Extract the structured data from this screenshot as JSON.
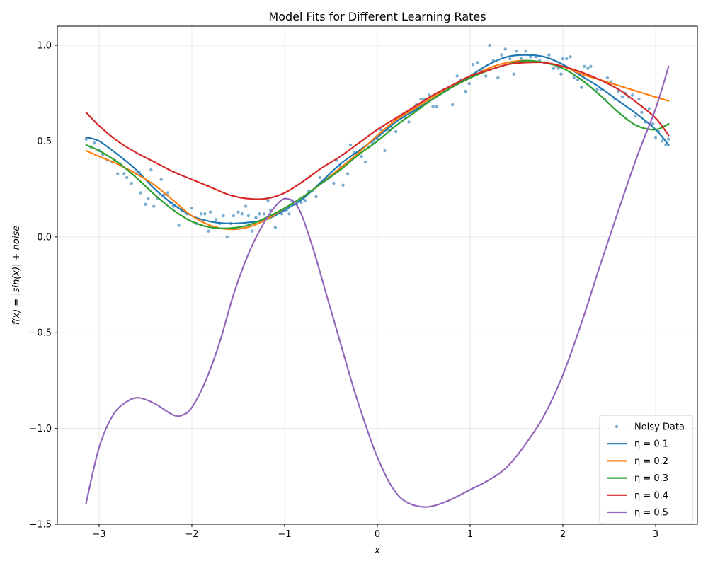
{
  "chart_data": {
    "type": "line",
    "title": "Model Fits for Different Learning Rates",
    "xlabel": "x",
    "ylabel": "f(x) = |sin(x)| + noise",
    "xlim": [
      -3.45,
      3.45
    ],
    "ylim": [
      -1.5,
      1.1
    ],
    "xticks": [
      -3,
      -2,
      -1,
      0,
      1,
      2,
      3
    ],
    "xtick_labels": [
      "−3",
      "−2",
      "−1",
      "0",
      "1",
      "2",
      "3"
    ],
    "yticks": [
      -1.5,
      -1.0,
      -0.5,
      0.0,
      0.5,
      1.0
    ],
    "ytick_labels": [
      "−1.5",
      "−1.0",
      "−0.5",
      "0.0",
      "0.5",
      "1.0"
    ],
    "grid": true,
    "legend_position": "lower-right",
    "scatter": {
      "name": "Noisy Data",
      "color": "#1f77b4",
      "points": [
        [
          -3.14,
          0.51
        ],
        [
          -3.09,
          0.47
        ],
        [
          -3.05,
          0.49
        ],
        [
          -3.0,
          0.45
        ],
        [
          -2.96,
          0.43
        ],
        [
          -2.91,
          0.4
        ],
        [
          -2.86,
          0.39
        ],
        [
          -2.83,
          0.4
        ],
        [
          -2.8,
          0.33
        ],
        [
          -2.77,
          0.38
        ],
        [
          -2.73,
          0.33
        ],
        [
          -2.7,
          0.31
        ],
        [
          -2.65,
          0.28
        ],
        [
          -2.6,
          0.33
        ],
        [
          -2.57,
          0.34
        ],
        [
          -2.55,
          0.23
        ],
        [
          -2.5,
          0.17
        ],
        [
          -2.47,
          0.2
        ],
        [
          -2.44,
          0.35
        ],
        [
          -2.41,
          0.16
        ],
        [
          -2.37,
          0.2
        ],
        [
          -2.33,
          0.3
        ],
        [
          -2.3,
          0.22
        ],
        [
          -2.26,
          0.23
        ],
        [
          -2.23,
          0.18
        ],
        [
          -2.2,
          0.16
        ],
        [
          -2.14,
          0.06
        ],
        [
          -2.11,
          0.14
        ],
        [
          -2.05,
          0.12
        ],
        [
          -2.0,
          0.15
        ],
        [
          -1.95,
          0.07
        ],
        [
          -1.9,
          0.12
        ],
        [
          -1.86,
          0.12
        ],
        [
          -1.82,
          0.03
        ],
        [
          -1.8,
          0.13
        ],
        [
          -1.74,
          0.09
        ],
        [
          -1.7,
          0.07
        ],
        [
          -1.66,
          0.11
        ],
        [
          -1.62,
          0.0
        ],
        [
          -1.58,
          0.07
        ],
        [
          -1.55,
          0.11
        ],
        [
          -1.5,
          0.13
        ],
        [
          -1.46,
          0.12
        ],
        [
          -1.42,
          0.16
        ],
        [
          -1.39,
          0.11
        ],
        [
          -1.35,
          0.03
        ],
        [
          -1.31,
          0.1
        ],
        [
          -1.27,
          0.12
        ],
        [
          -1.22,
          0.12
        ],
        [
          -1.18,
          0.19
        ],
        [
          -1.15,
          0.14
        ],
        [
          -1.1,
          0.05
        ],
        [
          -1.06,
          0.13
        ],
        [
          -1.03,
          0.12
        ],
        [
          -0.98,
          0.14
        ],
        [
          -0.95,
          0.12
        ],
        [
          -0.92,
          0.19
        ],
        [
          -0.87,
          0.17
        ],
        [
          -0.82,
          0.18
        ],
        [
          -0.78,
          0.19
        ],
        [
          -0.74,
          0.24
        ],
        [
          -0.7,
          0.24
        ],
        [
          -0.66,
          0.21
        ],
        [
          -0.62,
          0.31
        ],
        [
          -0.58,
          0.29
        ],
        [
          -0.55,
          0.3
        ],
        [
          -0.52,
          0.31
        ],
        [
          -0.47,
          0.28
        ],
        [
          -0.44,
          0.4
        ],
        [
          -0.4,
          0.37
        ],
        [
          -0.37,
          0.27
        ],
        [
          -0.32,
          0.33
        ],
        [
          -0.29,
          0.48
        ],
        [
          -0.25,
          0.44
        ],
        [
          -0.21,
          0.44
        ],
        [
          -0.17,
          0.42
        ],
        [
          -0.13,
          0.39
        ],
        [
          -0.09,
          0.47
        ],
        [
          -0.05,
          0.49
        ],
        [
          0.0,
          0.51
        ],
        [
          0.04,
          0.56
        ],
        [
          0.08,
          0.45
        ],
        [
          0.12,
          0.56
        ],
        [
          0.16,
          0.57
        ],
        [
          0.2,
          0.55
        ],
        [
          0.25,
          0.63
        ],
        [
          0.3,
          0.62
        ],
        [
          0.34,
          0.6
        ],
        [
          0.38,
          0.67
        ],
        [
          0.42,
          0.69
        ],
        [
          0.47,
          0.72
        ],
        [
          0.51,
          0.72
        ],
        [
          0.56,
          0.74
        ],
        [
          0.6,
          0.68
        ],
        [
          0.64,
          0.68
        ],
        [
          0.68,
          0.75
        ],
        [
          0.72,
          0.77
        ],
        [
          0.77,
          0.78
        ],
        [
          0.81,
          0.69
        ],
        [
          0.86,
          0.84
        ],
        [
          0.9,
          0.82
        ],
        [
          0.95,
          0.76
        ],
        [
          0.99,
          0.8
        ],
        [
          1.03,
          0.9
        ],
        [
          1.08,
          0.91
        ],
        [
          1.12,
          0.87
        ],
        [
          1.17,
          0.84
        ],
        [
          1.21,
          1.0
        ],
        [
          1.25,
          0.92
        ],
        [
          1.3,
          0.83
        ],
        [
          1.34,
          0.95
        ],
        [
          1.38,
          0.98
        ],
        [
          1.43,
          0.93
        ],
        [
          1.47,
          0.85
        ],
        [
          1.5,
          0.97
        ],
        [
          1.55,
          0.93
        ],
        [
          1.6,
          0.97
        ],
        [
          1.65,
          0.94
        ],
        [
          1.71,
          0.94
        ],
        [
          1.75,
          0.92
        ],
        [
          1.8,
          0.91
        ],
        [
          1.85,
          0.95
        ],
        [
          1.9,
          0.88
        ],
        [
          1.95,
          0.88
        ],
        [
          1.98,
          0.85
        ],
        [
          2.0,
          0.93
        ],
        [
          2.04,
          0.93
        ],
        [
          2.08,
          0.94
        ],
        [
          2.12,
          0.83
        ],
        [
          2.16,
          0.82
        ],
        [
          2.2,
          0.78
        ],
        [
          2.23,
          0.89
        ],
        [
          2.27,
          0.88
        ],
        [
          2.3,
          0.89
        ],
        [
          2.33,
          0.83
        ],
        [
          2.37,
          0.77
        ],
        [
          2.41,
          0.77
        ],
        [
          2.45,
          0.72
        ],
        [
          2.48,
          0.83
        ],
        [
          2.52,
          0.81
        ],
        [
          2.56,
          0.72
        ],
        [
          2.6,
          0.76
        ],
        [
          2.64,
          0.73
        ],
        [
          2.67,
          0.75
        ],
        [
          2.71,
          0.73
        ],
        [
          2.75,
          0.74
        ],
        [
          2.78,
          0.63
        ],
        [
          2.82,
          0.72
        ],
        [
          2.85,
          0.65
        ],
        [
          2.89,
          0.6
        ],
        [
          2.93,
          0.67
        ],
        [
          2.97,
          0.59
        ],
        [
          3.0,
          0.52
        ],
        [
          3.03,
          0.55
        ],
        [
          3.07,
          0.5
        ],
        [
          3.11,
          0.48
        ],
        [
          3.14,
          0.51
        ]
      ]
    },
    "series": [
      {
        "name": "η = 0.1",
        "color": "#1f77b4",
        "x": [
          -3.14,
          -3.0,
          -2.8,
          -2.6,
          -2.4,
          -2.2,
          -2.0,
          -1.8,
          -1.6,
          -1.4,
          -1.2,
          -1.0,
          -0.8,
          -0.6,
          -0.4,
          -0.2,
          0.0,
          0.2,
          0.4,
          0.6,
          0.8,
          1.0,
          1.2,
          1.4,
          1.6,
          1.8,
          2.0,
          2.2,
          2.4,
          2.6,
          2.8,
          3.0,
          3.14
        ],
        "y": [
          0.52,
          0.5,
          0.43,
          0.35,
          0.25,
          0.17,
          0.11,
          0.08,
          0.07,
          0.075,
          0.09,
          0.14,
          0.2,
          0.29,
          0.38,
          0.45,
          0.52,
          0.6,
          0.66,
          0.72,
          0.78,
          0.84,
          0.9,
          0.94,
          0.95,
          0.94,
          0.9,
          0.84,
          0.78,
          0.71,
          0.64,
          0.56,
          0.48
        ]
      },
      {
        "name": "η = 0.2",
        "color": "#ff7f0e",
        "x": [
          -3.14,
          -3.0,
          -2.8,
          -2.6,
          -2.4,
          -2.2,
          -2.0,
          -1.8,
          -1.6,
          -1.4,
          -1.2,
          -1.0,
          -0.8,
          -0.6,
          -0.4,
          -0.2,
          0.0,
          0.2,
          0.4,
          0.6,
          0.8,
          1.0,
          1.2,
          1.4,
          1.6,
          1.8,
          2.0,
          2.2,
          2.4,
          2.6,
          2.8,
          3.0,
          3.14
        ],
        "y": [
          0.45,
          0.42,
          0.38,
          0.33,
          0.27,
          0.19,
          0.11,
          0.06,
          0.04,
          0.05,
          0.09,
          0.15,
          0.21,
          0.28,
          0.36,
          0.44,
          0.53,
          0.61,
          0.67,
          0.73,
          0.78,
          0.83,
          0.88,
          0.91,
          0.92,
          0.91,
          0.89,
          0.85,
          0.82,
          0.79,
          0.76,
          0.73,
          0.71
        ]
      },
      {
        "name": "η = 0.3",
        "color": "#2ca02c",
        "x": [
          -3.14,
          -3.0,
          -2.8,
          -2.6,
          -2.4,
          -2.2,
          -2.0,
          -1.8,
          -1.6,
          -1.4,
          -1.2,
          -1.0,
          -0.8,
          -0.6,
          -0.4,
          -0.2,
          0.0,
          0.2,
          0.4,
          0.6,
          0.8,
          1.0,
          1.2,
          1.4,
          1.6,
          1.8,
          2.0,
          2.2,
          2.4,
          2.6,
          2.8,
          3.0,
          3.14
        ],
        "y": [
          0.48,
          0.45,
          0.39,
          0.31,
          0.22,
          0.14,
          0.08,
          0.05,
          0.045,
          0.06,
          0.1,
          0.15,
          0.21,
          0.28,
          0.35,
          0.43,
          0.5,
          0.58,
          0.65,
          0.72,
          0.78,
          0.83,
          0.87,
          0.9,
          0.92,
          0.91,
          0.88,
          0.82,
          0.74,
          0.65,
          0.58,
          0.56,
          0.59
        ]
      },
      {
        "name": "η = 0.4",
        "color": "#d62728",
        "x": [
          -3.14,
          -3.0,
          -2.8,
          -2.6,
          -2.4,
          -2.2,
          -2.0,
          -1.8,
          -1.6,
          -1.4,
          -1.2,
          -1.0,
          -0.8,
          -0.6,
          -0.4,
          -0.2,
          0.0,
          0.2,
          0.4,
          0.6,
          0.8,
          1.0,
          1.2,
          1.4,
          1.6,
          1.8,
          2.0,
          2.2,
          2.4,
          2.6,
          2.8,
          3.0,
          3.14
        ],
        "y": [
          0.65,
          0.58,
          0.5,
          0.44,
          0.39,
          0.34,
          0.3,
          0.26,
          0.22,
          0.2,
          0.2,
          0.23,
          0.29,
          0.36,
          0.42,
          0.49,
          0.56,
          0.62,
          0.68,
          0.74,
          0.79,
          0.84,
          0.87,
          0.9,
          0.91,
          0.91,
          0.89,
          0.86,
          0.82,
          0.77,
          0.7,
          0.62,
          0.53
        ]
      },
      {
        "name": "η = 0.5",
        "color": "#9467bd",
        "x": [
          -3.14,
          -3.0,
          -2.85,
          -2.7,
          -2.57,
          -2.4,
          -2.2,
          -2.1,
          -2.0,
          -1.85,
          -1.7,
          -1.55,
          -1.4,
          -1.25,
          -1.1,
          -0.98,
          -0.85,
          -0.7,
          -0.55,
          -0.4,
          -0.25,
          -0.1,
          0.0,
          0.15,
          0.3,
          0.52,
          0.75,
          1.0,
          1.2,
          1.4,
          1.6,
          1.8,
          2.0,
          2.2,
          2.4,
          2.6,
          2.8,
          3.0,
          3.14
        ],
        "y": [
          -1.39,
          -1.1,
          -0.93,
          -0.86,
          -0.84,
          -0.87,
          -0.93,
          -0.93,
          -0.89,
          -0.75,
          -0.55,
          -0.3,
          -0.1,
          0.05,
          0.16,
          0.2,
          0.15,
          -0.05,
          -0.3,
          -0.55,
          -0.8,
          -1.02,
          -1.15,
          -1.3,
          -1.38,
          -1.41,
          -1.38,
          -1.32,
          -1.27,
          -1.2,
          -1.08,
          -0.93,
          -0.72,
          -0.45,
          -0.15,
          0.14,
          0.42,
          0.67,
          0.89
        ]
      }
    ]
  }
}
